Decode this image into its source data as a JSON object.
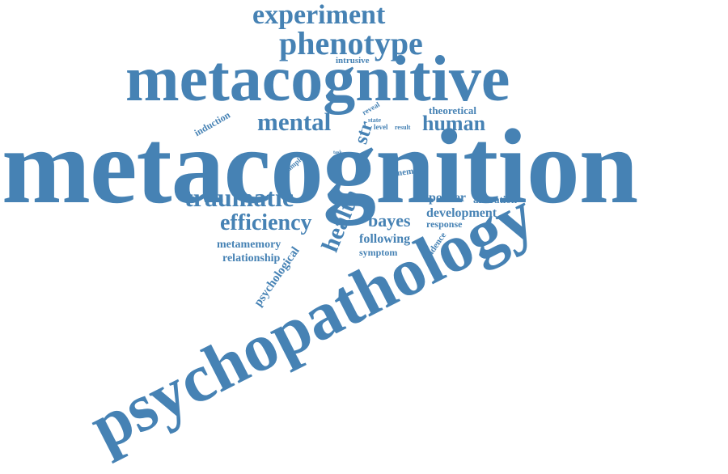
{
  "cloud": {
    "color": "#4682b4",
    "words": [
      "metacognition",
      "psychopathology",
      "metacognitive",
      "phenotype",
      "experiment",
      "mental",
      "human",
      "traumatic",
      "efficiency",
      "health",
      "str",
      "bayes",
      "development",
      "poorer",
      "alteration",
      "response",
      "following",
      "symptom",
      "metamemory",
      "relationship",
      "psychological",
      "evidence",
      "memory",
      "theoretical",
      "intrusive",
      "induction",
      "sample",
      "reveal",
      "state",
      "level",
      "result",
      "task"
    ]
  }
}
